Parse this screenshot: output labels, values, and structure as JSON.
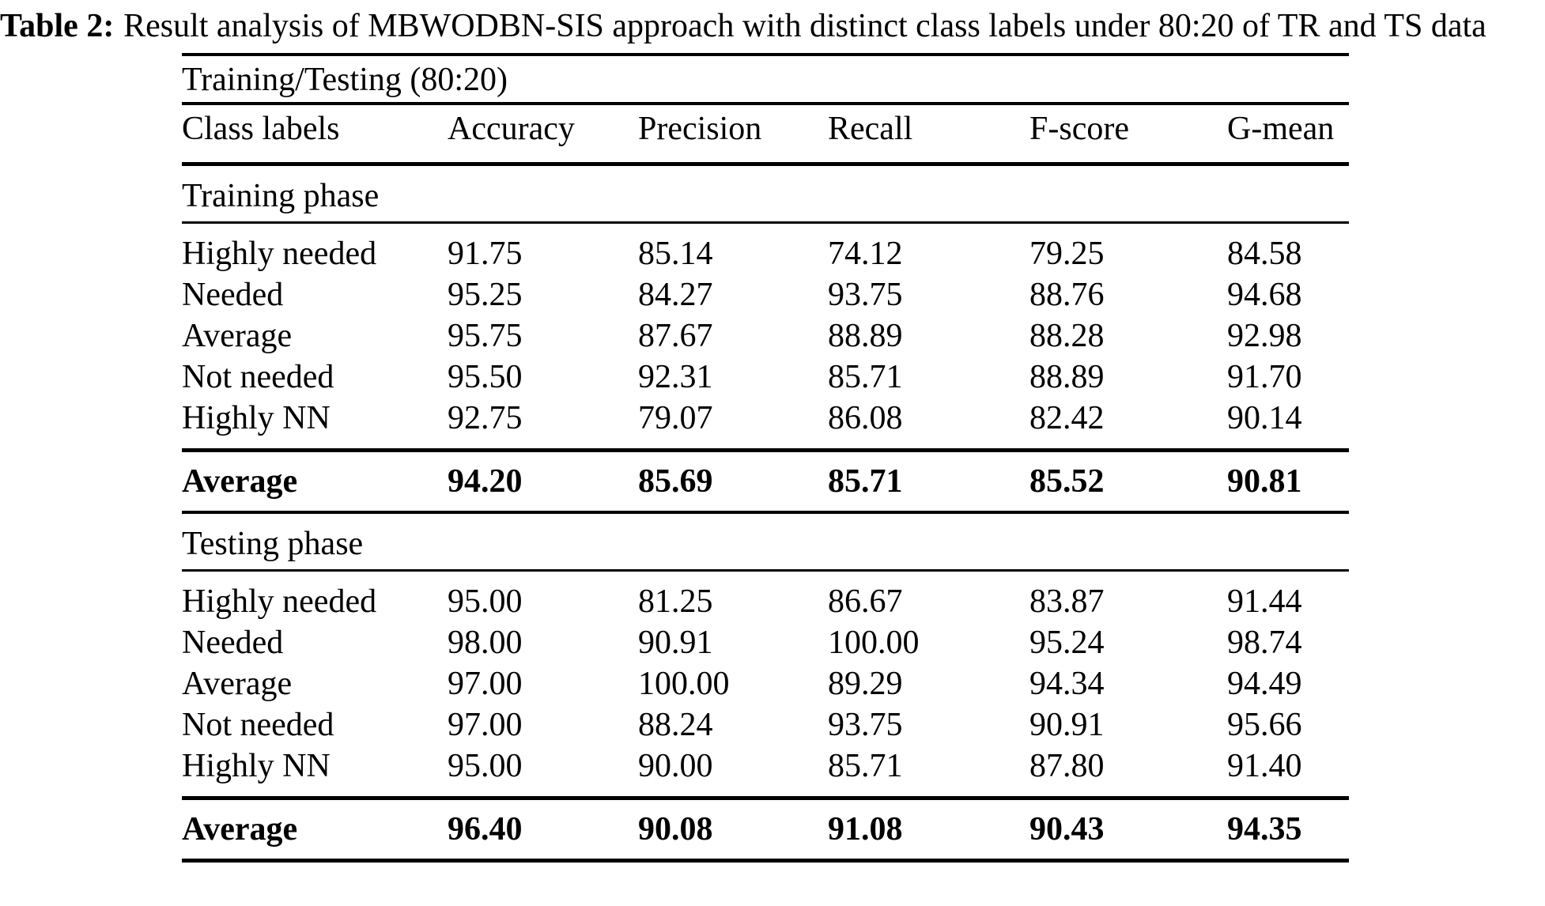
{
  "colors": {
    "text": "#000000",
    "background": "#ffffff",
    "rule": "#000000"
  },
  "caption": {
    "label": "Table 2:",
    "text": "Result analysis of MBWODBN-SIS approach with distinct class labels under 80:20 of TR and TS data"
  },
  "table": {
    "group_header": "Training/Testing (80:20)",
    "columns": [
      "Class labels",
      "Accuracy",
      "Precision",
      "Recall",
      "F-score",
      "G-mean"
    ],
    "sections": [
      {
        "title": "Training phase",
        "rows": [
          {
            "label": "Highly needed",
            "values": [
              "91.75",
              "85.14",
              "74.12",
              "79.25",
              "84.58"
            ]
          },
          {
            "label": "Needed",
            "values": [
              "95.25",
              "84.27",
              "93.75",
              "88.76",
              "94.68"
            ]
          },
          {
            "label": "Average",
            "values": [
              "95.75",
              "87.67",
              "88.89",
              "88.28",
              "92.98"
            ]
          },
          {
            "label": "Not needed",
            "values": [
              "95.50",
              "92.31",
              "85.71",
              "88.89",
              "91.70"
            ]
          },
          {
            "label": "Highly NN",
            "values": [
              "92.75",
              "79.07",
              "86.08",
              "82.42",
              "90.14"
            ]
          }
        ],
        "summary": {
          "label": "Average",
          "values": [
            "94.20",
            "85.69",
            "85.71",
            "85.52",
            "90.81"
          ]
        }
      },
      {
        "title": "Testing phase",
        "rows": [
          {
            "label": "Highly needed",
            "values": [
              "95.00",
              "81.25",
              "86.67",
              "83.87",
              "91.44"
            ]
          },
          {
            "label": "Needed",
            "values": [
              "98.00",
              "90.91",
              "100.00",
              "95.24",
              "98.74"
            ]
          },
          {
            "label": "Average",
            "values": [
              "97.00",
              "100.00",
              "89.29",
              "94.34",
              "94.49"
            ]
          },
          {
            "label": "Not needed",
            "values": [
              "97.00",
              "88.24",
              "93.75",
              "90.91",
              "95.66"
            ]
          },
          {
            "label": "Highly NN",
            "values": [
              "95.00",
              "90.00",
              "85.71",
              "87.80",
              "91.40"
            ]
          }
        ],
        "summary": {
          "label": "Average",
          "values": [
            "96.40",
            "90.08",
            "91.08",
            "90.43",
            "94.35"
          ]
        }
      }
    ]
  }
}
